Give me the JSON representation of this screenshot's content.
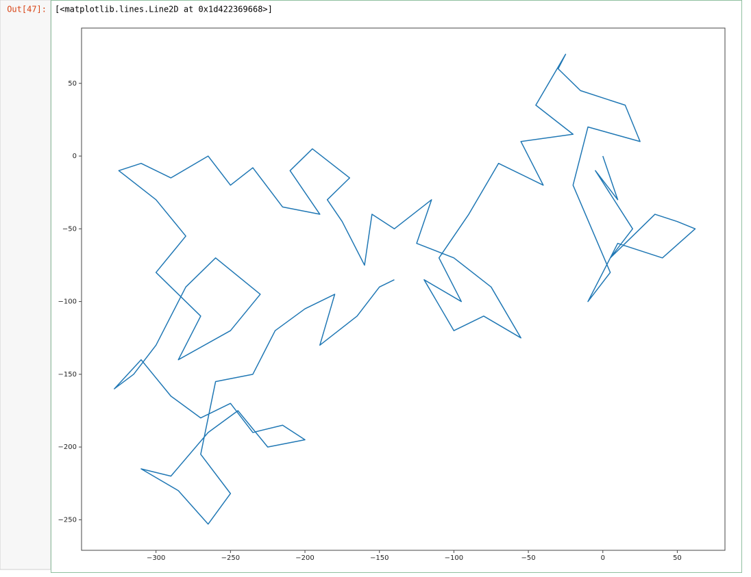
{
  "prompt": "Out[47]:",
  "output_text": "[<matplotlib.lines.Line2D at 0x1d422369668>]",
  "chart_data": {
    "type": "line",
    "color": "#1f77b4",
    "xlim": [
      -350,
      82
    ],
    "ylim": [
      -271,
      88
    ],
    "xticks": [
      {
        "value": -300,
        "label": "−300"
      },
      {
        "value": -250,
        "label": "−250"
      },
      {
        "value": -200,
        "label": "−200"
      },
      {
        "value": -150,
        "label": "−150"
      },
      {
        "value": -100,
        "label": "−100"
      },
      {
        "value": -50,
        "label": "−50"
      },
      0,
      50
    ],
    "yticks": [
      {
        "value": -250,
        "label": "−250"
      },
      {
        "value": -200,
        "label": "−200"
      },
      {
        "value": -150,
        "label": "−150"
      },
      {
        "value": -100,
        "label": "−100"
      },
      {
        "value": -50,
        "label": "−50"
      },
      0,
      50
    ],
    "x": [
      0,
      10,
      -5,
      20,
      5,
      35,
      50,
      62,
      40,
      10,
      -10,
      5,
      -20,
      -10,
      25,
      15,
      -15,
      -30,
      -25,
      -45,
      -20,
      -55,
      -40,
      -70,
      -90,
      -110,
      -95,
      -120,
      -100,
      -80,
      -55,
      -75,
      -100,
      -125,
      -115,
      -140,
      -155,
      -160,
      -175,
      -185,
      -170,
      -195,
      -210,
      -200,
      -190,
      -215,
      -235,
      -250,
      -265,
      -290,
      -310,
      -325,
      -300,
      -280,
      -300,
      -270,
      -285,
      -250,
      -230,
      -260,
      -280,
      -300,
      -315,
      -328,
      -310,
      -290,
      -270,
      -250,
      -235,
      -215,
      -200,
      -225,
      -245,
      -265,
      -290,
      -310,
      -285,
      -265,
      -250,
      -270,
      -260,
      -235,
      -220,
      -200,
      -180,
      -190,
      -165,
      -150,
      -140
    ],
    "y": [
      0,
      -30,
      -10,
      -50,
      -70,
      -40,
      -45,
      -50,
      -70,
      -60,
      -100,
      -80,
      -20,
      20,
      10,
      35,
      45,
      60,
      70,
      35,
      15,
      10,
      -20,
      -5,
      -40,
      -70,
      -100,
      -85,
      -120,
      -110,
      -125,
      -90,
      -70,
      -60,
      -30,
      -50,
      -40,
      -75,
      -45,
      -30,
      -15,
      5,
      -10,
      -25,
      -40,
      -35,
      -8,
      -20,
      0,
      -15,
      -5,
      -10,
      -30,
      -55,
      -80,
      -110,
      -140,
      -120,
      -95,
      -70,
      -90,
      -130,
      -150,
      -160,
      -140,
      -165,
      -180,
      -170,
      -190,
      -185,
      -195,
      -200,
      -175,
      -190,
      -220,
      -215,
      -230,
      -253,
      -232,
      -205,
      -155,
      -150,
      -120,
      -105,
      -95,
      -130,
      -110,
      -90,
      -85
    ]
  }
}
